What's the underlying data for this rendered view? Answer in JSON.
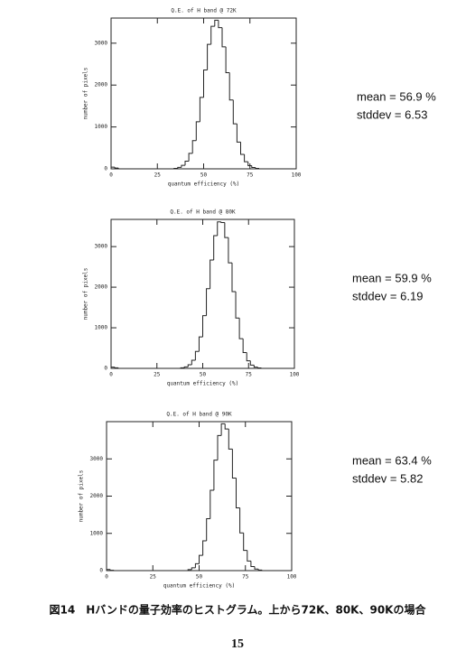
{
  "chart_data": [
    {
      "type": "histogram",
      "title": "Q.E. of H band @ 72K",
      "xlabel": "quantum efficiency (%)",
      "ylabel": "number of pixels",
      "bins": [
        0,
        2,
        4,
        6,
        8,
        10,
        12,
        14,
        16,
        18,
        20,
        22,
        24,
        26,
        28,
        30,
        32,
        34,
        36,
        38,
        40,
        42,
        44,
        46,
        48,
        50,
        52,
        54,
        56,
        58,
        60,
        62,
        64,
        66,
        68,
        70,
        72,
        74,
        76,
        78,
        80,
        82,
        84,
        86,
        88,
        90,
        92,
        94,
        96,
        98,
        100
      ],
      "values": [
        40,
        20,
        0,
        0,
        0,
        0,
        0,
        0,
        0,
        0,
        0,
        0,
        0,
        0,
        0,
        0,
        0,
        12,
        34,
        83,
        183,
        368,
        675,
        1125,
        1707,
        2361,
        2971,
        3404,
        3550,
        3371,
        2914,
        2296,
        1645,
        1074,
        638,
        345,
        170,
        76,
        31,
        11,
        0,
        0,
        0,
        0,
        0,
        0,
        0,
        0,
        0,
        0
      ],
      "xlim": [
        0,
        100
      ],
      "xticks": [
        0,
        25,
        50,
        75,
        100
      ],
      "ylim": [
        0,
        3600
      ],
      "yticks": [
        0,
        1000,
        2000,
        3000
      ],
      "color": "#222222",
      "annotations": [
        "mean = 56.9 %",
        "stddev = 6.53"
      ]
    },
    {
      "type": "histogram",
      "title": "Q.E. of H band @ 80K",
      "xlabel": "quantum efficiency (%)",
      "ylabel": "number of pixels",
      "bins": [
        0,
        2,
        4,
        6,
        8,
        10,
        12,
        14,
        16,
        18,
        20,
        22,
        24,
        26,
        28,
        30,
        32,
        34,
        36,
        38,
        40,
        42,
        44,
        46,
        48,
        50,
        52,
        54,
        56,
        58,
        60,
        62,
        64,
        66,
        68,
        70,
        72,
        74,
        76,
        78,
        80,
        82,
        84,
        86,
        88,
        90,
        92,
        94,
        96,
        98,
        100
      ],
      "values": [
        30,
        15,
        0,
        0,
        0,
        0,
        0,
        0,
        0,
        0,
        0,
        0,
        0,
        0,
        0,
        0,
        0,
        0,
        0,
        13,
        35,
        88,
        201,
        416,
        775,
        1298,
        1962,
        2669,
        3271,
        3610,
        3593,
        3221,
        2600,
        1890,
        1239,
        731,
        389,
        187,
        80,
        31,
        12,
        0,
        0,
        0,
        0,
        0,
        0,
        0,
        0,
        0
      ],
      "xlim": [
        0,
        100
      ],
      "xticks": [
        0,
        25,
        50,
        75,
        100
      ],
      "ylim": [
        0,
        3670
      ],
      "yticks": [
        0,
        1000,
        2000,
        3000
      ],
      "color": "#222222",
      "annotations": [
        "mean = 59.9 %",
        "stddev = 6.19"
      ]
    },
    {
      "type": "histogram",
      "title": "Q.E. of H band @ 90K",
      "xlabel": "quantum efficiency (%)",
      "ylabel": "number of pixels",
      "bins": [
        0,
        2,
        4,
        6,
        8,
        10,
        12,
        14,
        16,
        18,
        20,
        22,
        24,
        26,
        28,
        30,
        32,
        34,
        36,
        38,
        40,
        42,
        44,
        46,
        48,
        50,
        52,
        54,
        56,
        58,
        60,
        62,
        64,
        66,
        68,
        70,
        72,
        74,
        76,
        78,
        80,
        82,
        84,
        86,
        88,
        90,
        92,
        94,
        96,
        98,
        100
      ],
      "values": [
        30,
        10,
        0,
        0,
        0,
        0,
        0,
        0,
        0,
        0,
        0,
        0,
        0,
        0,
        0,
        0,
        0,
        0,
        0,
        0,
        0,
        0,
        27,
        75,
        185,
        409,
        800,
        1393,
        2157,
        2968,
        3628,
        3941,
        3803,
        3263,
        2486,
        1684,
        1013,
        542,
        257,
        109,
        41,
        14,
        0,
        0,
        0,
        0,
        0,
        0,
        0,
        0,
        0
      ],
      "xlim": [
        0,
        100
      ],
      "xticks": [
        0,
        25,
        50,
        75,
        100
      ],
      "ylim": [
        0,
        4000
      ],
      "yticks": [
        0,
        1000,
        2000,
        3000
      ],
      "color": "#222222",
      "annotations": [
        "mean = 63.4 %",
        "stddev = 5.82"
      ]
    }
  ],
  "caption": "図14　Hバンドの量子効率のヒストグラム。上から72K、80K、90Kの場合",
  "page_number": "15"
}
